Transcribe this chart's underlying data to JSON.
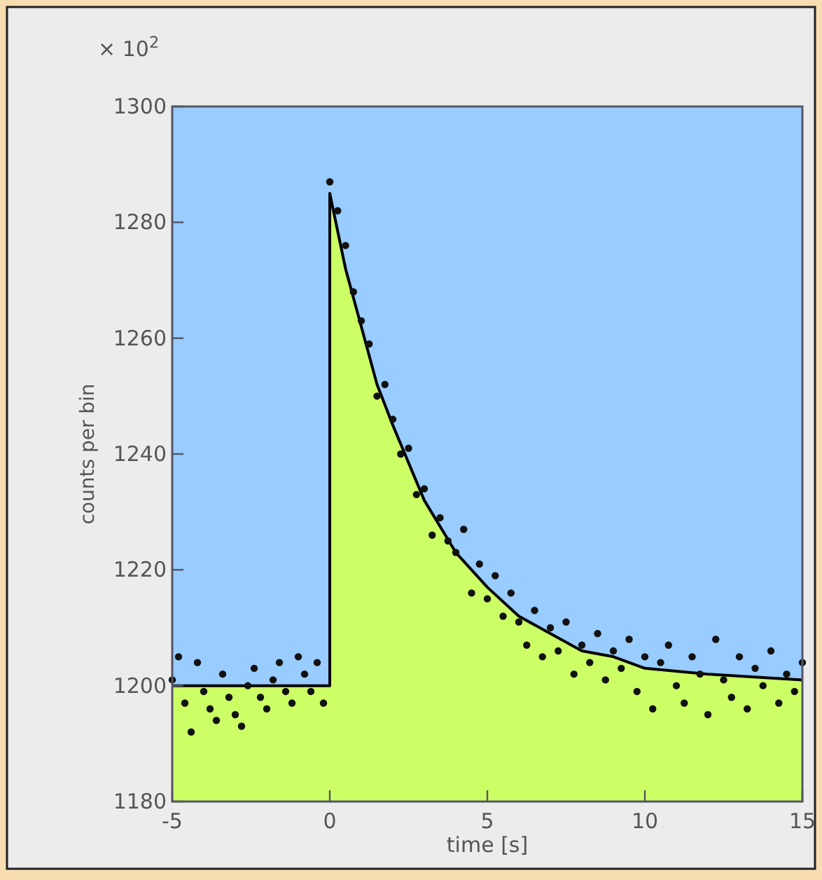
{
  "chart_data": {
    "type": "scatter",
    "xlabel": "time [s]",
    "ylabel": "counts per bin",
    "annotations": [
      "× 10$^{2}$"
    ],
    "xlim": [
      -5,
      15
    ],
    "ylim": [
      1180,
      1300
    ],
    "xticks": [
      -5,
      0,
      5,
      10,
      15
    ],
    "yticks": [
      1180,
      1200,
      1220,
      1240,
      1260,
      1280,
      1300
    ],
    "grid": false,
    "marker": "circle",
    "series": [
      {
        "type": "area",
        "color": "#ccff66",
        "marker": "none",
        "x": [
          -5,
          0,
          0,
          0.5,
          1,
          1.5,
          2,
          3,
          4,
          5,
          6,
          7,
          8,
          9,
          10,
          12,
          15
        ],
        "values": [
          1200,
          1200,
          1285,
          1272,
          1262,
          1252,
          1245,
          1232,
          1223,
          1217,
          1212,
          1209,
          1206,
          1205,
          1203,
          1202,
          1201
        ]
      },
      {
        "color": "#111111",
        "x": [
          -5,
          -4.8,
          -4.6,
          -4.4,
          -4.2,
          -4,
          -3.8,
          -3.6,
          -3.4,
          -3.2,
          -3,
          -2.8,
          -2.6,
          -2.4,
          -2.2,
          -2,
          -1.8,
          -1.6,
          -1.4,
          -1.2,
          -1,
          -0.8,
          -0.6,
          -0.4,
          -0.2,
          0,
          0.25,
          0.5,
          0.75,
          1,
          1.25,
          1.5,
          1.75,
          2,
          2.25,
          2.5,
          2.75,
          3,
          3.25,
          3.5,
          3.75,
          4,
          4.25,
          4.5,
          4.75,
          5,
          5.25,
          5.5,
          5.75,
          6,
          6.25,
          6.5,
          6.75,
          7,
          7.25,
          7.5,
          7.75,
          8,
          8.25,
          8.5,
          8.75,
          9,
          9.25,
          9.5,
          9.75,
          10,
          10.25,
          10.5,
          10.75,
          11,
          11.25,
          11.5,
          11.75,
          12,
          12.25,
          12.5,
          12.75,
          13,
          13.25,
          13.5,
          13.75,
          14,
          14.25,
          14.5,
          14.75,
          15
        ],
        "values": [
          1201,
          1205,
          1197,
          1192,
          1204,
          1199,
          1196,
          1194,
          1202,
          1198,
          1195,
          1193,
          1200,
          1203,
          1198,
          1196,
          1201,
          1204,
          1199,
          1197,
          1205,
          1202,
          1199,
          1204,
          1197,
          1287,
          1282,
          1276,
          1268,
          1263,
          1259,
          1250,
          1252,
          1246,
          1240,
          1241,
          1233,
          1234,
          1226,
          1229,
          1225,
          1223,
          1227,
          1216,
          1221,
          1215,
          1219,
          1212,
          1216,
          1211,
          1207,
          1213,
          1205,
          1210,
          1206,
          1211,
          1202,
          1207,
          1204,
          1209,
          1201,
          1206,
          1203,
          1208,
          1199,
          1205,
          1196,
          1204,
          1207,
          1200,
          1197,
          1205,
          1202,
          1195,
          1208,
          1201,
          1198,
          1205,
          1196,
          1203,
          1200,
          1206,
          1197,
          1202,
          1199,
          1204
        ]
      }
    ]
  }
}
